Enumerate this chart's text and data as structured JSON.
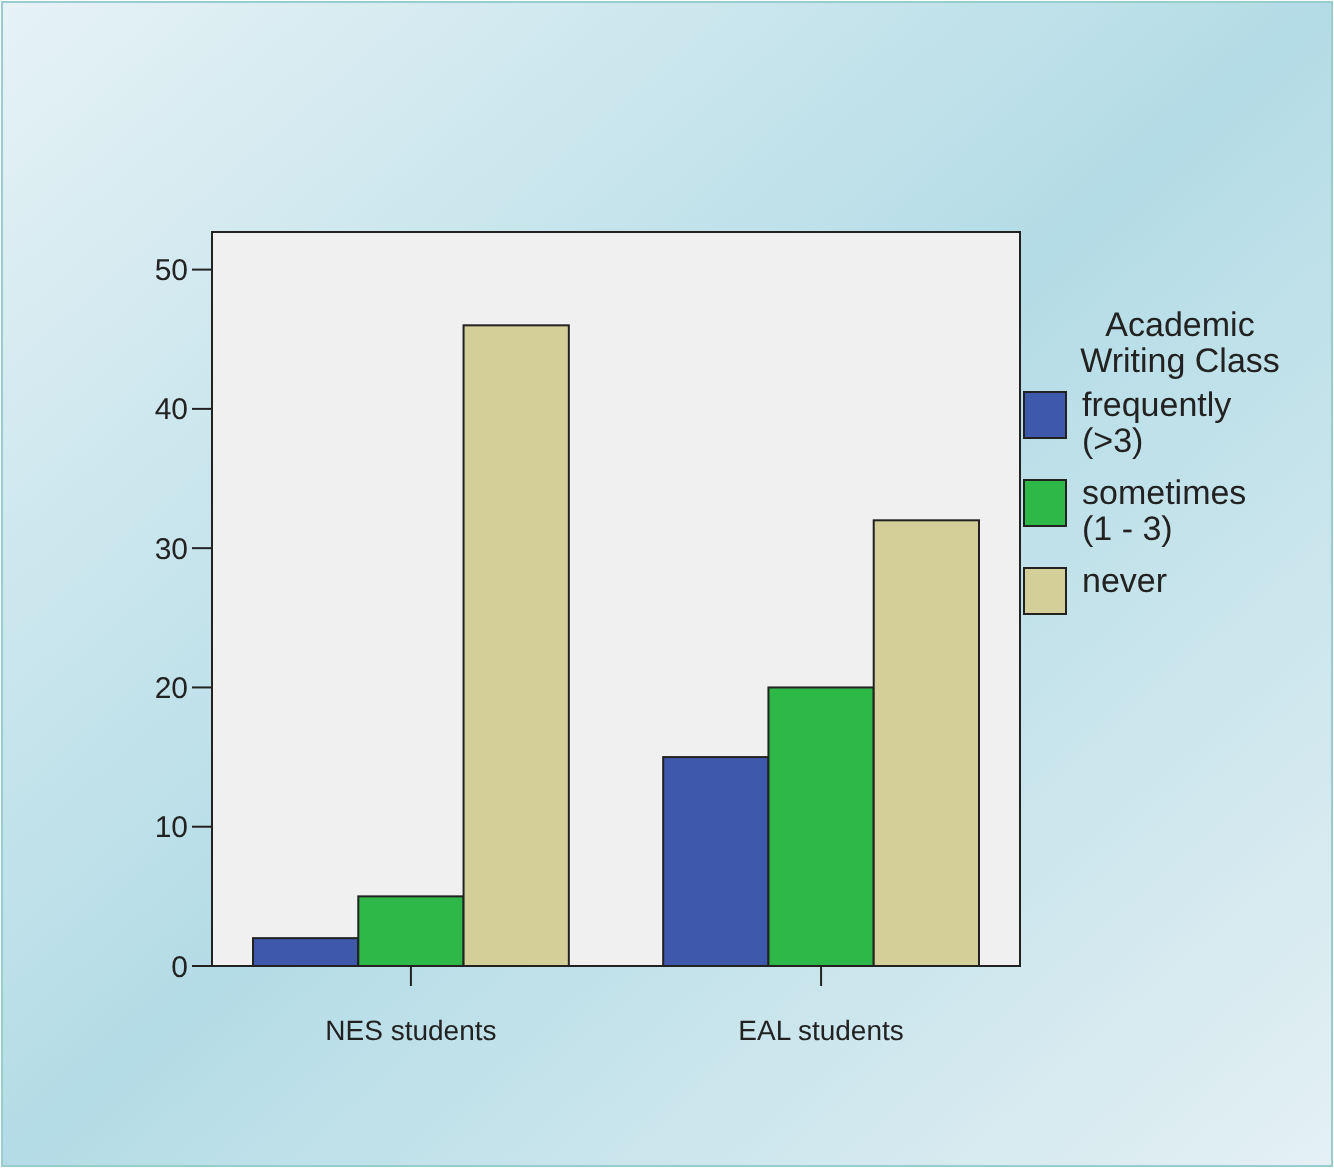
{
  "chart_data": {
    "type": "bar",
    "categories": [
      "NES students",
      "EAL students"
    ],
    "legend_title": "Academic Writing Class",
    "legend": "right",
    "ylim": [
      0,
      52.7
    ],
    "yticks": [
      0,
      10,
      20,
      30,
      40,
      50
    ],
    "grid": false,
    "series": [
      {
        "name": "frequently (>3)",
        "color": "#3e58ac",
        "values": [
          2,
          15
        ]
      },
      {
        "name": "sometimes (1 - 3)",
        "color": "#2eb848",
        "values": [
          5,
          20
        ]
      },
      {
        "name": "never",
        "color": "#d4cf98",
        "values": [
          46,
          32
        ]
      }
    ]
  }
}
